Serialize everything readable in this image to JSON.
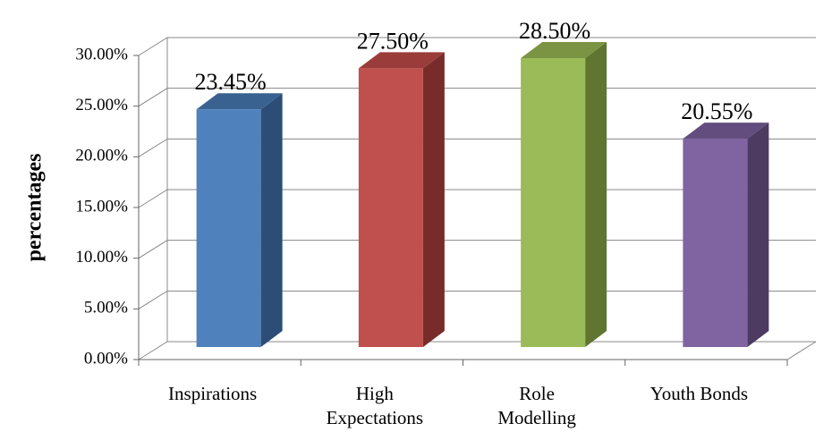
{
  "chart_data": {
    "type": "bar",
    "title": "",
    "xlabel": "",
    "ylabel": "percentages",
    "ylim": [
      0,
      30
    ],
    "y_ticks": [
      "0.00%",
      "5.00%",
      "10.00%",
      "15.00%",
      "20.00%",
      "25.00%",
      "30.00%"
    ],
    "categories": [
      "Inspirations",
      "High Expectations",
      "Role Modelling",
      "Youth Bonds"
    ],
    "values": [
      23.45,
      27.5,
      28.5,
      20.55
    ],
    "data_labels": [
      "23.45%",
      "27.50%",
      "28.50%",
      "20.55%"
    ],
    "colors": [
      "#4f81bd",
      "#c0504d",
      "#9bbb59",
      "#8064a2"
    ],
    "side_colors": [
      "#2c4d75",
      "#772c2a",
      "#5f7530",
      "#4d3b62"
    ],
    "top_colors": [
      "#3a6291",
      "#9a3d3a",
      "#7a9444",
      "#634d7f"
    ],
    "grid": true,
    "style": "3d-column"
  }
}
